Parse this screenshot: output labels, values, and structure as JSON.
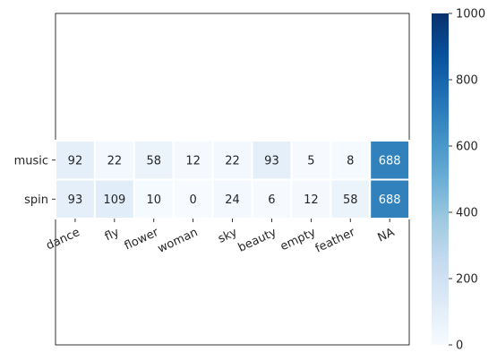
{
  "chart_data": {
    "type": "heatmap",
    "rows": [
      "music",
      "spin"
    ],
    "columns": [
      "dance",
      "fly",
      "flower",
      "woman",
      "sky",
      "beauty",
      "empty",
      "feather",
      "NA"
    ],
    "values": [
      [
        92,
        22,
        58,
        12,
        22,
        93,
        5,
        8,
        688
      ],
      [
        93,
        109,
        10,
        0,
        24,
        6,
        12,
        58,
        688
      ]
    ],
    "colorbar": {
      "min": 0,
      "max": 1000,
      "ticks": [
        0,
        200,
        400,
        600,
        800,
        1000
      ],
      "colormap": "Blues"
    },
    "annotations_shown": true,
    "x_tick_rotation_deg": 25
  },
  "colors": {
    "dark_text": "#262626",
    "light_text": "#ffffff",
    "cell_border": "#ffffff",
    "plot_frame": "#000000"
  }
}
